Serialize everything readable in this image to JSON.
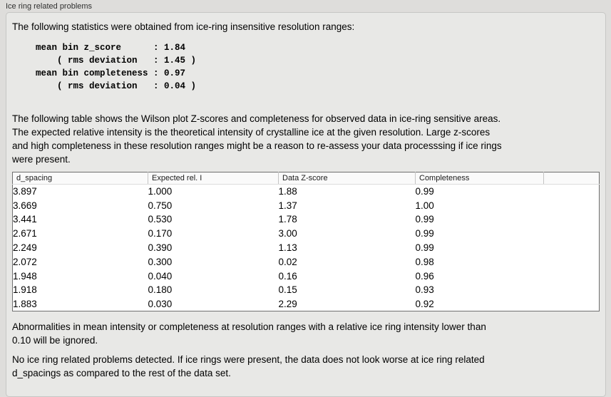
{
  "window": {
    "title": "Ice ring related problems"
  },
  "content": {
    "intro": "The following statistics were obtained from ice-ring insensitive resolution ranges:",
    "stats_block": "mean bin z_score      : 1.84\n    ( rms deviation   : 1.45 )\nmean bin completeness : 0.97\n    ( rms deviation   : 0.04 )",
    "stats": {
      "mean_bin_z_score": "1.84",
      "z_score_rms_deviation": "1.45",
      "mean_bin_completeness": "0.97",
      "completeness_rms_deviation": "0.04"
    },
    "table_caption": "The following table shows the Wilson plot Z-scores and completeness for observed data in ice-ring sensitive areas.\nThe expected relative intensity is the theoretical intensity of crystalline ice at the given resolution. Large z-scores\nand high completeness in these resolution ranges might be a reason to re-assess your data processsing if ice rings\nwere present.",
    "footer_ignore_note": "Abnormalities in mean intensity or completeness at resolution ranges with a relative ice ring intensity lower than\n0.10 will be ignored.",
    "footer_conclusion": "No ice ring related problems detected. If ice rings were present, the data does not look worse at ice ring related\nd_spacings as compared to the rest of the data set."
  },
  "table": {
    "columns": [
      "d_spacing",
      "Expected rel. I",
      "Data Z-score",
      "Completeness"
    ],
    "rows": [
      [
        "3.897",
        "1.000",
        "1.88",
        "0.99"
      ],
      [
        "3.669",
        "0.750",
        "1.37",
        "1.00"
      ],
      [
        "3.441",
        "0.530",
        "1.78",
        "0.99"
      ],
      [
        "2.671",
        "0.170",
        "3.00",
        "0.99"
      ],
      [
        "2.249",
        "0.390",
        "1.13",
        "0.99"
      ],
      [
        "2.072",
        "0.300",
        "0.02",
        "0.98"
      ],
      [
        "1.948",
        "0.040",
        "0.16",
        "0.96"
      ],
      [
        "1.918",
        "0.180",
        "0.15",
        "0.93"
      ],
      [
        "1.883",
        "0.030",
        "2.29",
        "0.92"
      ]
    ]
  },
  "colors": {
    "outer_background": "#dedddb",
    "panel_background": "#e8e8e6",
    "panel_border": "#c6c6c4",
    "table_border": "#6f6f6f",
    "header_divider": "#c4c4c4"
  }
}
